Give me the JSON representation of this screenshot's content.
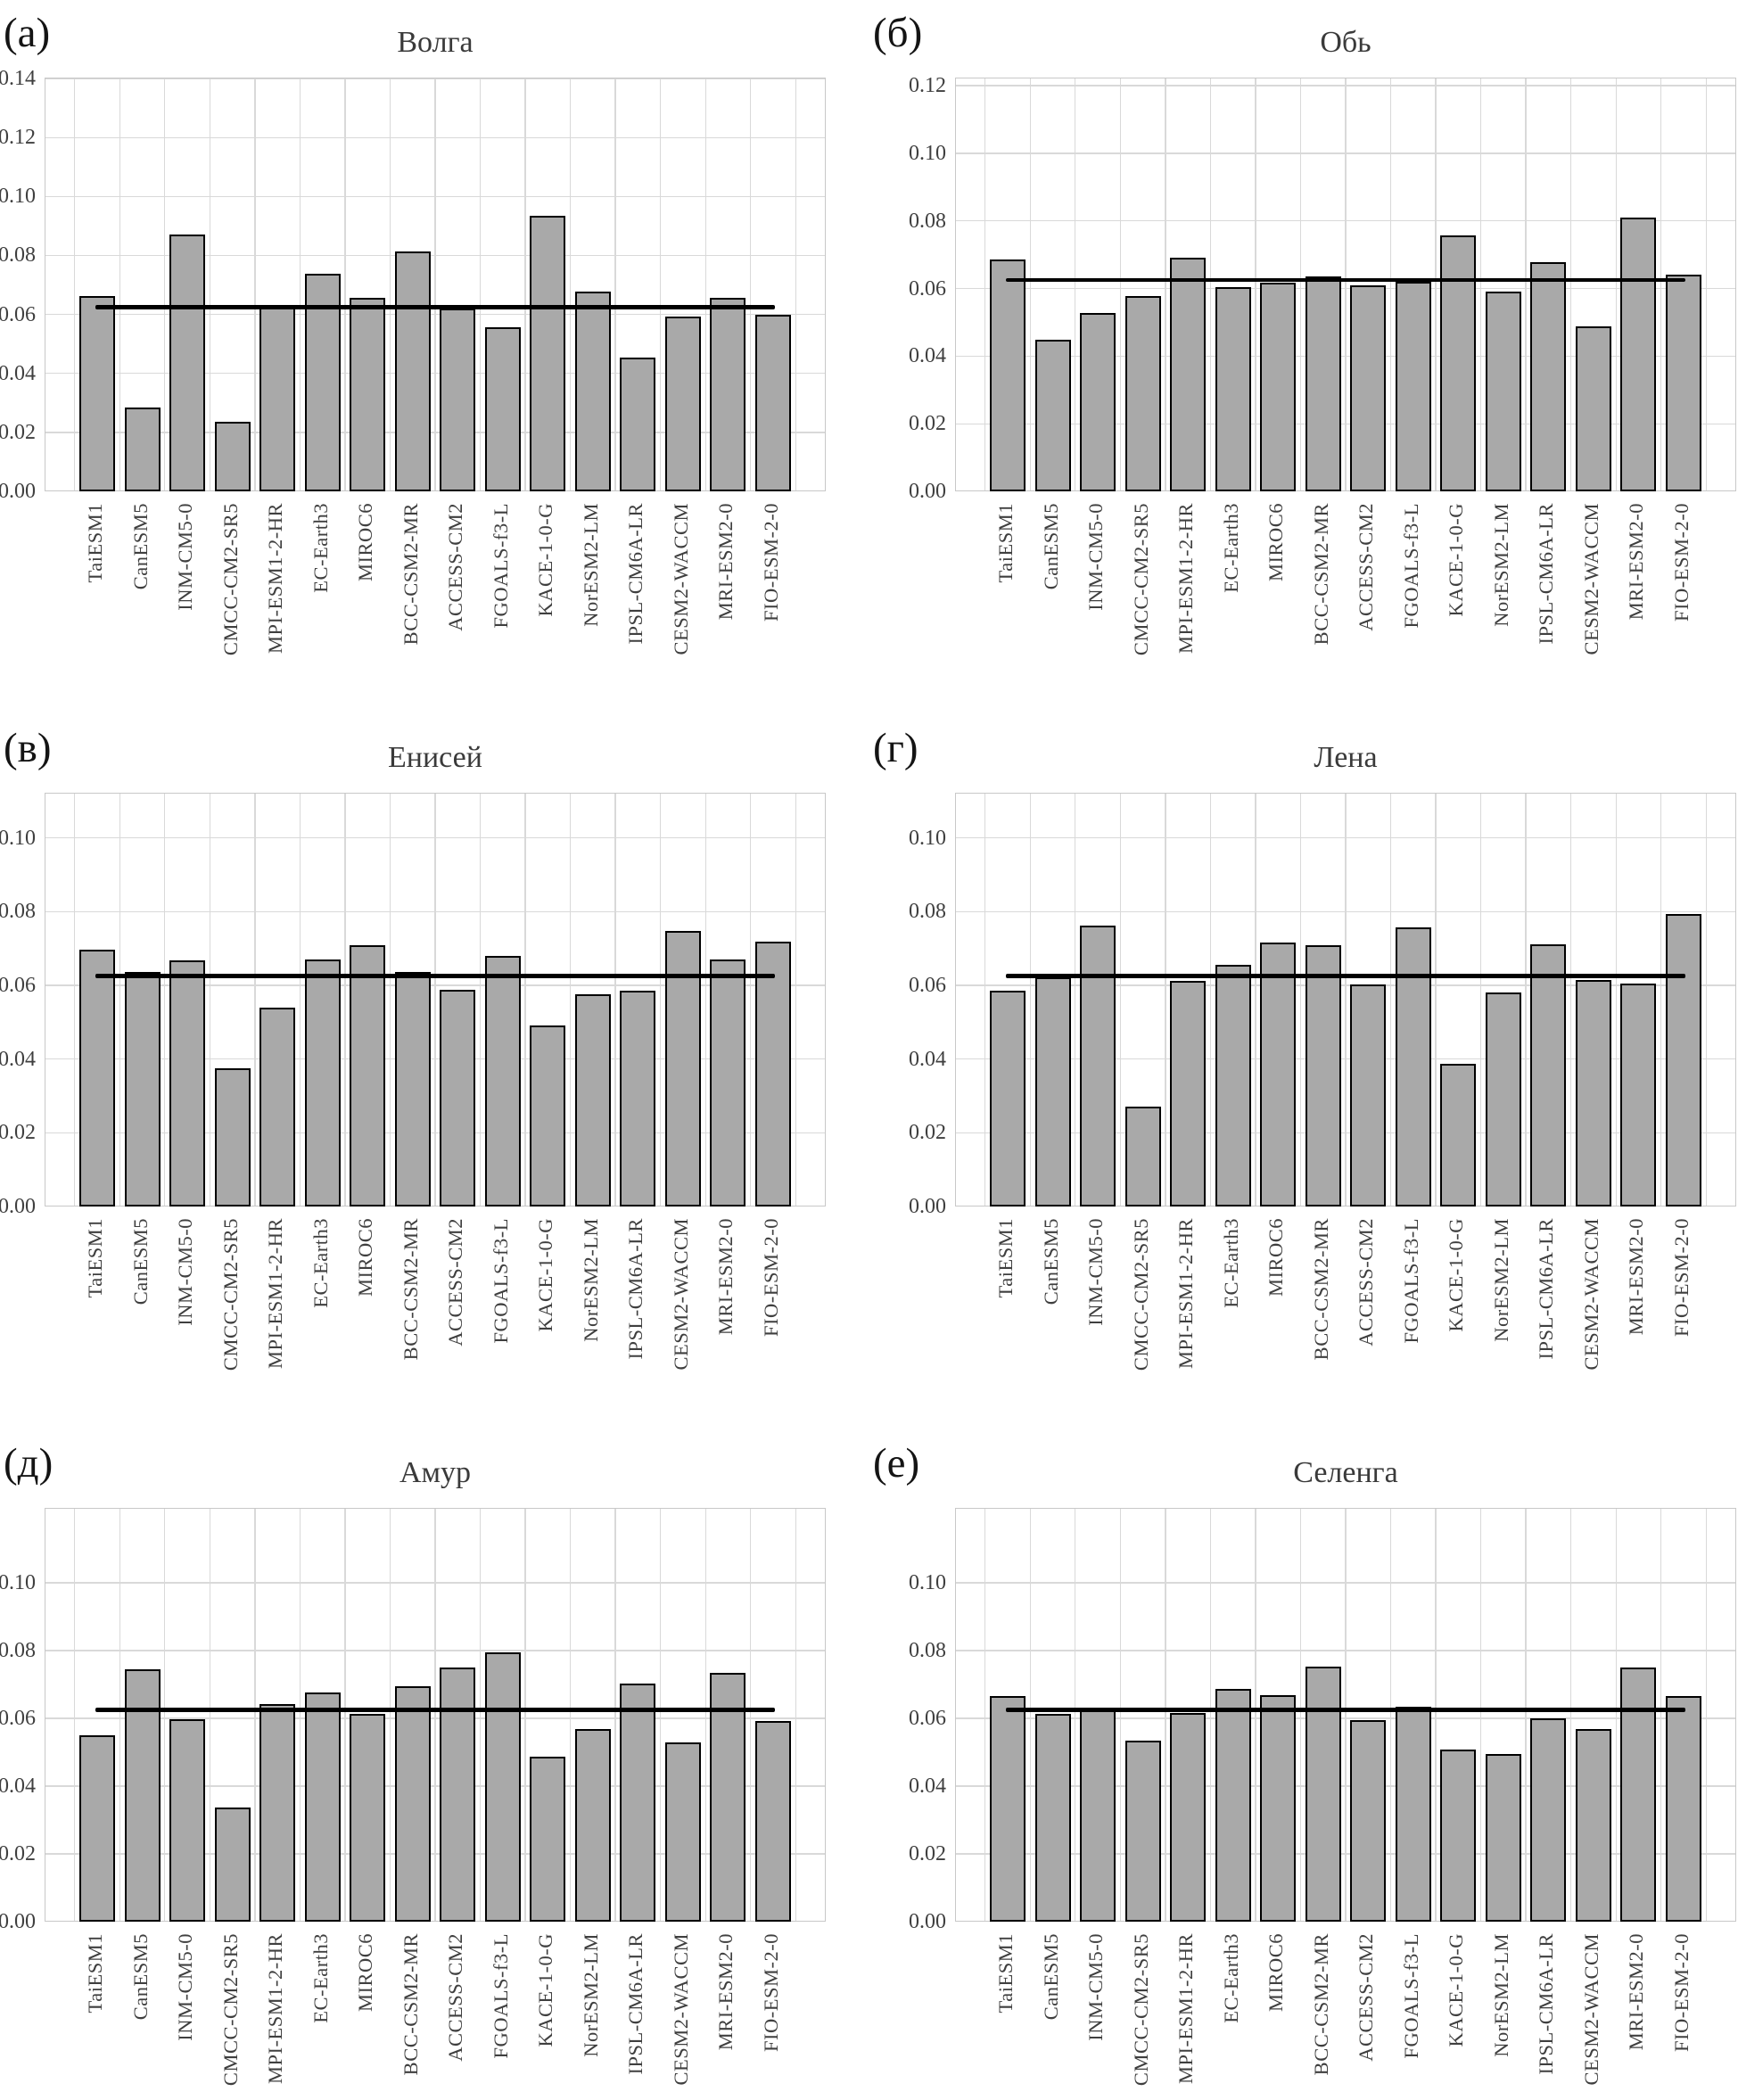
{
  "figure": {
    "colors": {
      "background": "#ffffff",
      "bar_fill": "#a9a9a9",
      "bar_edge": "#000000",
      "mean_line": "#000000",
      "gridline": "#d9d9d9",
      "frame": "#c8c8c8",
      "tick_label": "#3f3f3f",
      "title": "#3a3a3a",
      "panel_letter": "#141414"
    }
  },
  "chart_data": [
    {
      "type": "bar",
      "panel_label": "(а)",
      "title": "Волга",
      "categories": [
        "TaiESM1",
        "CanESM5",
        "INM-CM5-0",
        "CMCC-CM2-SR5",
        "MPI-ESM1-2-HR",
        "EC-Earth3",
        "MIROC6",
        "BCC-CSM2-MR",
        "ACCESS-CM2",
        "FGOALS-f3-L",
        "KACE-1-0-G",
        "NorESM2-LM",
        "IPSL-CM6A-LR",
        "CESM2-WACCM",
        "MRI-ESM2-0",
        "FIO-ESM-2-0"
      ],
      "values": [
        0.0661,
        0.0285,
        0.0872,
        0.0236,
        0.0633,
        0.0739,
        0.0657,
        0.0812,
        0.062,
        0.0557,
        0.0934,
        0.0678,
        0.0455,
        0.0592,
        0.0655,
        0.0598
      ],
      "mean_line": 0.0625,
      "yticks": [
        0.0,
        0.02,
        0.04,
        0.06,
        0.08,
        0.1,
        0.12,
        0.14
      ],
      "ylim": [
        0,
        0.1403
      ],
      "grid": true,
      "legend": "none",
      "xlabel": "",
      "ylabel": ""
    },
    {
      "type": "bar",
      "panel_label": "(б)",
      "title": "Обь",
      "categories": [
        "TaiESM1",
        "CanESM5",
        "INM-CM5-0",
        "CMCC-CM2-SR5",
        "MPI-ESM1-2-HR",
        "EC-Earth3",
        "MIROC6",
        "BCC-CSM2-MR",
        "ACCESS-CM2",
        "FGOALS-f3-L",
        "KACE-1-0-G",
        "NorESM2-LM",
        "IPSL-CM6A-LR",
        "CESM2-WACCM",
        "MRI-ESM2-0",
        "FIO-ESM-2-0"
      ],
      "values": [
        0.0686,
        0.0448,
        0.0528,
        0.0577,
        0.069,
        0.0605,
        0.0618,
        0.0636,
        0.061,
        0.0621,
        0.0757,
        0.0591,
        0.0679,
        0.0487,
        0.081,
        0.0641
      ],
      "mean_line": 0.0625,
      "yticks": [
        0.0,
        0.02,
        0.04,
        0.06,
        0.08,
        0.1,
        0.12
      ],
      "ylim": [
        0,
        0.1224
      ],
      "grid": true,
      "legend": "none",
      "xlabel": "",
      "ylabel": ""
    },
    {
      "type": "bar",
      "panel_label": "(в)",
      "title": "Енисей",
      "categories": [
        "TaiESM1",
        "CanESM5",
        "INM-CM5-0",
        "CMCC-CM2-SR5",
        "MPI-ESM1-2-HR",
        "EC-Earth3",
        "MIROC6",
        "BCC-CSM2-MR",
        "ACCESS-CM2",
        "FGOALS-f3-L",
        "KACE-1-0-G",
        "NorESM2-LM",
        "IPSL-CM6A-LR",
        "CESM2-WACCM",
        "MRI-ESM2-0",
        "FIO-ESM-2-0"
      ],
      "values": [
        0.0698,
        0.0637,
        0.0668,
        0.0374,
        0.054,
        0.0671,
        0.071,
        0.0637,
        0.0589,
        0.068,
        0.0492,
        0.0576,
        0.0586,
        0.0748,
        0.0671,
        0.0719
      ],
      "mean_line": 0.0625,
      "yticks": [
        0.0,
        0.02,
        0.04,
        0.06,
        0.08,
        0.1
      ],
      "ylim": [
        0,
        0.1123
      ],
      "grid": true,
      "legend": "none",
      "xlabel": "",
      "ylabel": ""
    },
    {
      "type": "bar",
      "panel_label": "(г)",
      "title": "Лена",
      "categories": [
        "TaiESM1",
        "CanESM5",
        "INM-CM5-0",
        "CMCC-CM2-SR5",
        "MPI-ESM1-2-HR",
        "EC-Earth3",
        "MIROC6",
        "BCC-CSM2-MR",
        "ACCESS-CM2",
        "FGOALS-f3-L",
        "KACE-1-0-G",
        "NorESM2-LM",
        "IPSL-CM6A-LR",
        "CESM2-WACCM",
        "MRI-ESM2-0",
        "FIO-ESM-2-0"
      ],
      "values": [
        0.0585,
        0.0622,
        0.0763,
        0.027,
        0.0612,
        0.0656,
        0.0716,
        0.071,
        0.0603,
        0.0758,
        0.0387,
        0.058,
        0.0712,
        0.0615,
        0.0606,
        0.0793
      ],
      "mean_line": 0.0625,
      "yticks": [
        0.0,
        0.02,
        0.04,
        0.06,
        0.08,
        0.1
      ],
      "ylim": [
        0,
        0.1123
      ],
      "grid": true,
      "legend": "none",
      "xlabel": "",
      "ylabel": ""
    },
    {
      "type": "bar",
      "panel_label": "(д)",
      "title": "Амур",
      "categories": [
        "TaiESM1",
        "CanESM5",
        "INM-CM5-0",
        "CMCC-CM2-SR5",
        "MPI-ESM1-2-HR",
        "EC-Earth3",
        "MIROC6",
        "BCC-CSM2-MR",
        "ACCESS-CM2",
        "FGOALS-f3-L",
        "KACE-1-0-G",
        "NorESM2-LM",
        "IPSL-CM6A-LR",
        "CESM2-WACCM",
        "MRI-ESM2-0",
        "FIO-ESM-2-0"
      ],
      "values": [
        0.0551,
        0.0746,
        0.0597,
        0.0336,
        0.0643,
        0.0677,
        0.0614,
        0.0696,
        0.0751,
        0.0796,
        0.0488,
        0.0569,
        0.0702,
        0.0528,
        0.0734,
        0.0593
      ],
      "mean_line": 0.0625,
      "yticks": [
        0.0,
        0.02,
        0.04,
        0.06,
        0.08,
        0.1
      ],
      "ylim": [
        0,
        0.1221
      ],
      "grid": true,
      "legend": "none",
      "xlabel": "",
      "ylabel": ""
    },
    {
      "type": "bar",
      "panel_label": "(е)",
      "title": "Селенга",
      "categories": [
        "TaiESM1",
        "CanESM5",
        "INM-CM5-0",
        "CMCC-CM2-SR5",
        "MPI-ESM1-2-HR",
        "EC-Earth3",
        "MIROC6",
        "BCC-CSM2-MR",
        "ACCESS-CM2",
        "FGOALS-f3-L",
        "KACE-1-0-G",
        "NorESM2-LM",
        "IPSL-CM6A-LR",
        "CESM2-WACCM",
        "MRI-ESM2-0",
        "FIO-ESM-2-0"
      ],
      "values": [
        0.0665,
        0.0612,
        0.0626,
        0.0534,
        0.0616,
        0.0686,
        0.0668,
        0.0753,
        0.0595,
        0.0634,
        0.0507,
        0.0496,
        0.06,
        0.0568,
        0.075,
        0.0666
      ],
      "mean_line": 0.0625,
      "yticks": [
        0.0,
        0.02,
        0.04,
        0.06,
        0.08,
        0.1
      ],
      "ylim": [
        0,
        0.1221
      ],
      "grid": true,
      "legend": "none",
      "xlabel": "",
      "ylabel": ""
    }
  ]
}
